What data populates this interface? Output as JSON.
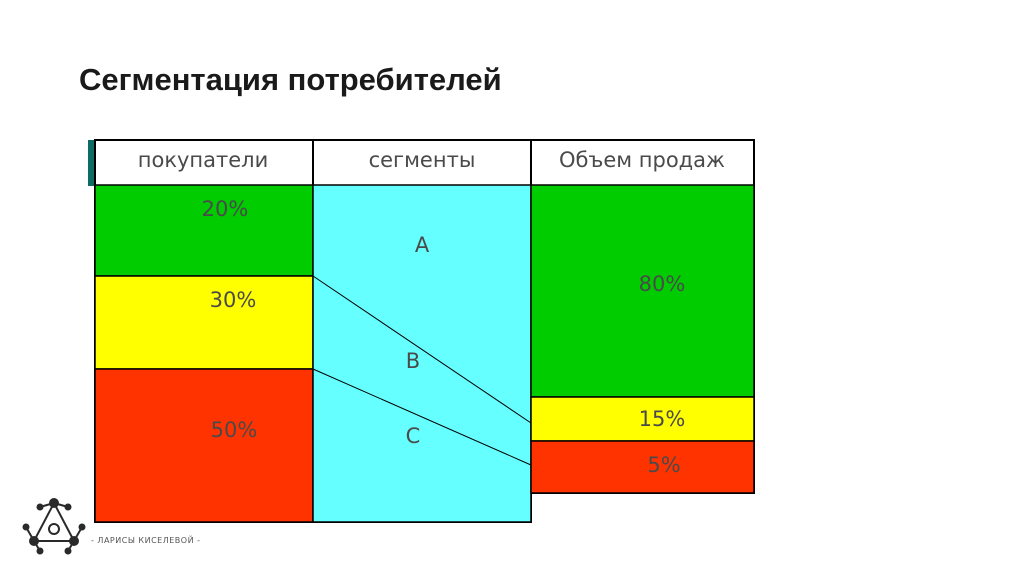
{
  "slide": {
    "title": "Сегментация потребителей"
  },
  "colors": {
    "green": "#00cc00",
    "yellow": "#ffff00",
    "red": "#ff3300",
    "cyan": "#66ffff",
    "accent_teal": "#0d6b64",
    "logo": "#2a2a2a"
  },
  "diagram": {
    "columns": {
      "buyers": "покупатели",
      "segments": "сегменты",
      "sales": "Объем продаж"
    },
    "buyers": [
      {
        "label": "20%",
        "value": 20,
        "color": "green"
      },
      {
        "label": "30%",
        "value": 30,
        "color": "yellow"
      },
      {
        "label": "50%",
        "value": 50,
        "color": "red"
      }
    ],
    "segments": [
      "A",
      "B",
      "C"
    ],
    "sales": [
      {
        "label": "80%",
        "value": 80,
        "color": "green"
      },
      {
        "label": "15%",
        "value": 15,
        "color": "yellow"
      },
      {
        "label": "5%",
        "value": 5,
        "color": "red"
      }
    ]
  },
  "footer": {
    "logo_icon": "molecule-logo-icon",
    "caption": "- ЛАРИСЫ КИСЕЛЕВОЙ -"
  }
}
